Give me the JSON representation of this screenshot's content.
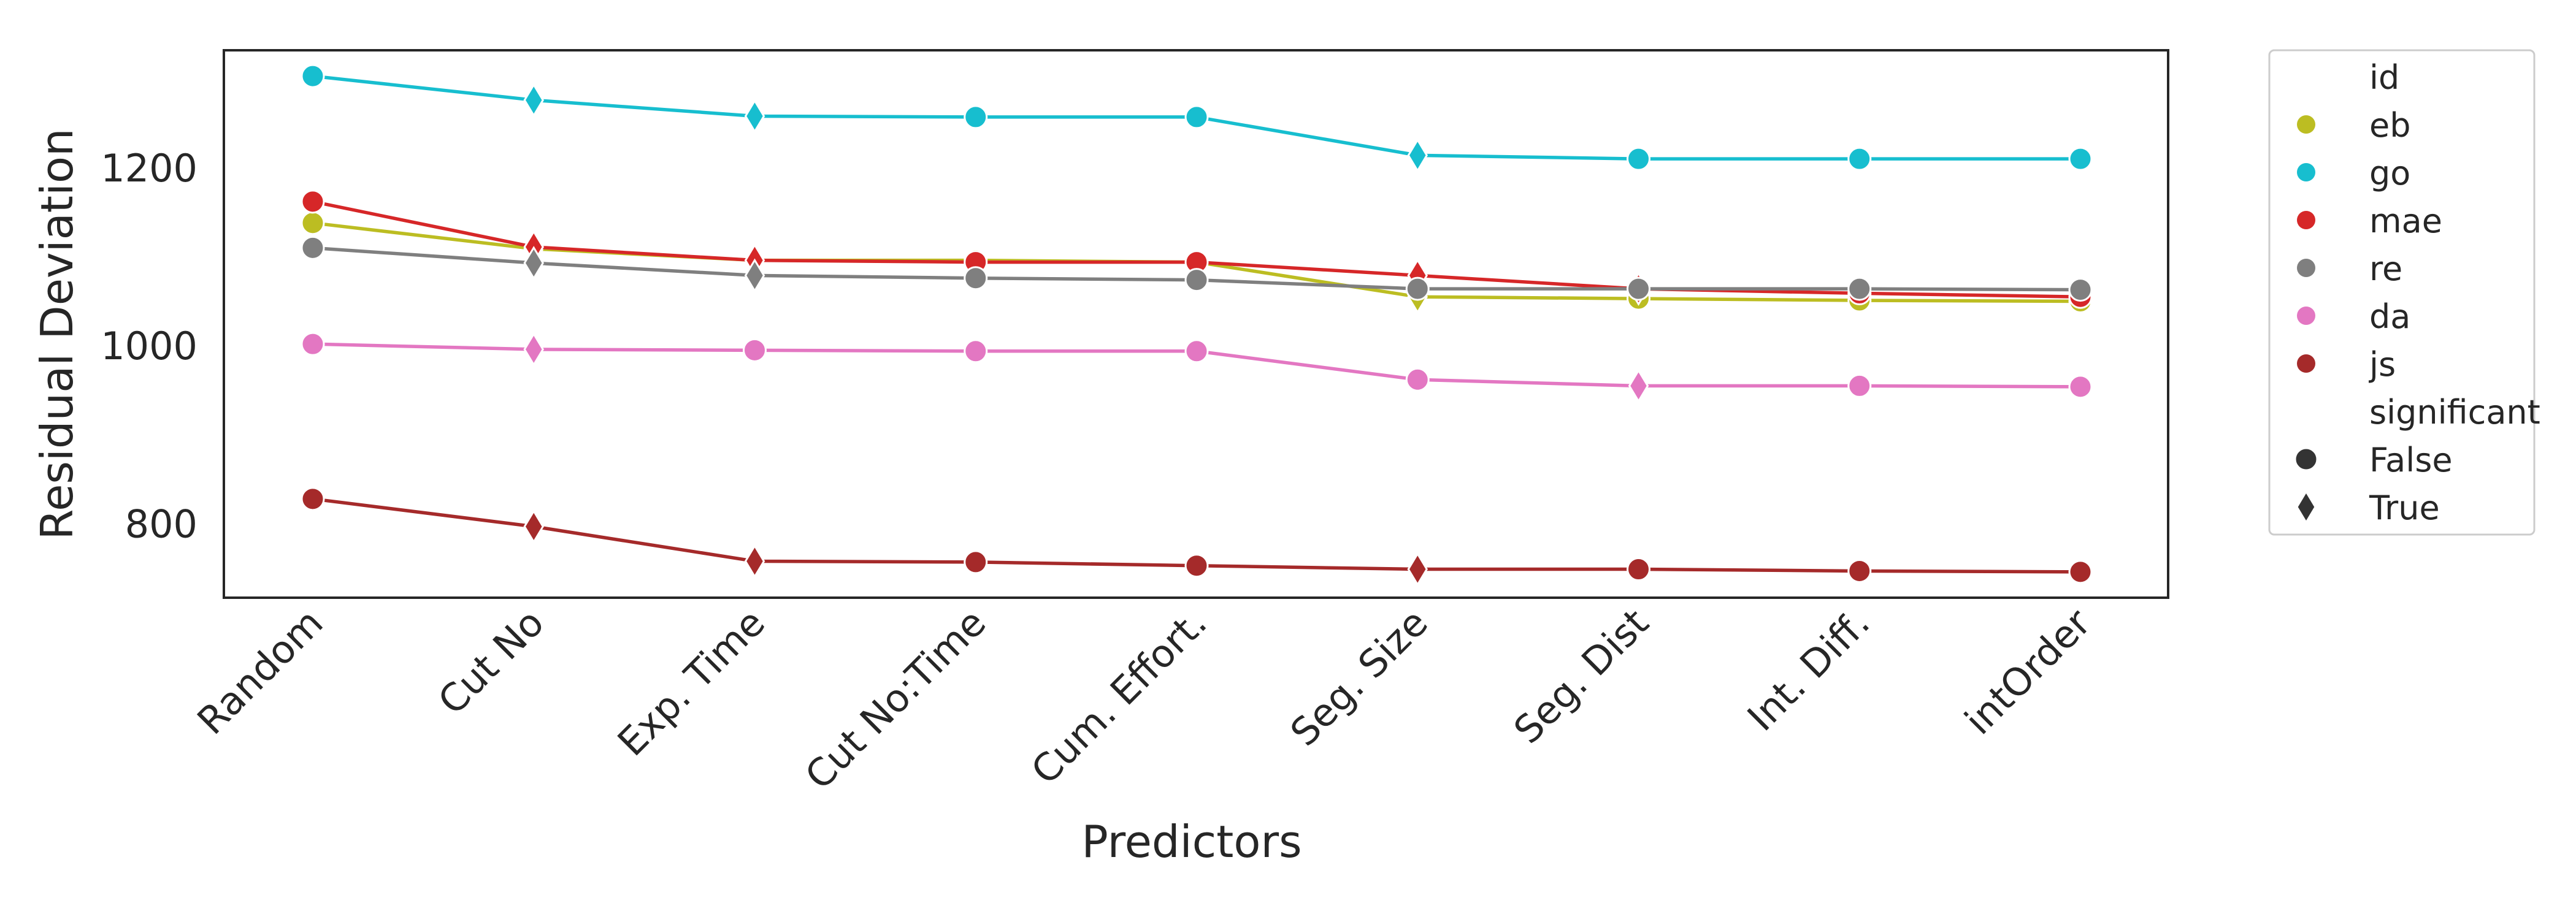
{
  "chart_data": {
    "type": "line",
    "title": "",
    "xlabel": "Predictors",
    "ylabel": "Residual Deviation",
    "categories": [
      "Random",
      "Cut No",
      "Exp. Time",
      "Cut No:Time",
      "Cum. Effort.",
      "Seg. Size",
      "Seg. Dist",
      "Int. Diff.",
      "intOrder"
    ],
    "ylim": [
      715,
      1330
    ],
    "yticks": [
      800,
      1000,
      1200
    ],
    "grid": false,
    "legend_position": "outside-right",
    "legend": {
      "hue_title": "id",
      "style_title": "significant",
      "style_entries": [
        {
          "label": "False",
          "marker": "circle"
        },
        {
          "label": "True",
          "marker": "diamond"
        }
      ]
    },
    "series": [
      {
        "name": "eb",
        "color": "#bcbd22",
        "values": [
          1136,
          1107,
          1094,
          1094,
          1092,
          1053,
          1051,
          1049,
          1048
        ],
        "significant": [
          false,
          true,
          true,
          false,
          false,
          true,
          false,
          false,
          false
        ]
      },
      {
        "name": "go",
        "color": "#17becf",
        "values": [
          1301,
          1274,
          1256,
          1255,
          1255,
          1212,
          1208,
          1208,
          1208
        ],
        "significant": [
          false,
          true,
          true,
          false,
          false,
          true,
          false,
          false,
          false
        ]
      },
      {
        "name": "mae",
        "color": "#d62728",
        "values": [
          1160,
          1109,
          1094,
          1092,
          1092,
          1077,
          1062,
          1057,
          1053
        ],
        "significant": [
          false,
          true,
          true,
          false,
          false,
          true,
          true,
          false,
          false
        ]
      },
      {
        "name": "re",
        "color": "#7f7f7f",
        "values": [
          1108,
          1091,
          1077,
          1074,
          1072,
          1062,
          1062,
          1062,
          1061
        ],
        "significant": [
          false,
          true,
          true,
          false,
          false,
          false,
          false,
          false,
          false
        ]
      },
      {
        "name": "da",
        "color": "#e377c2",
        "values": [
          1000,
          994,
          993,
          992,
          992,
          960,
          953,
          953,
          952
        ],
        "significant": [
          false,
          true,
          false,
          false,
          false,
          false,
          true,
          false,
          false
        ]
      },
      {
        "name": "js",
        "color": "#a52a2a",
        "values": [
          826,
          795,
          756,
          755,
          751,
          747,
          747,
          745,
          744
        ],
        "significant": [
          false,
          true,
          true,
          false,
          false,
          true,
          false,
          false,
          false
        ]
      }
    ]
  }
}
